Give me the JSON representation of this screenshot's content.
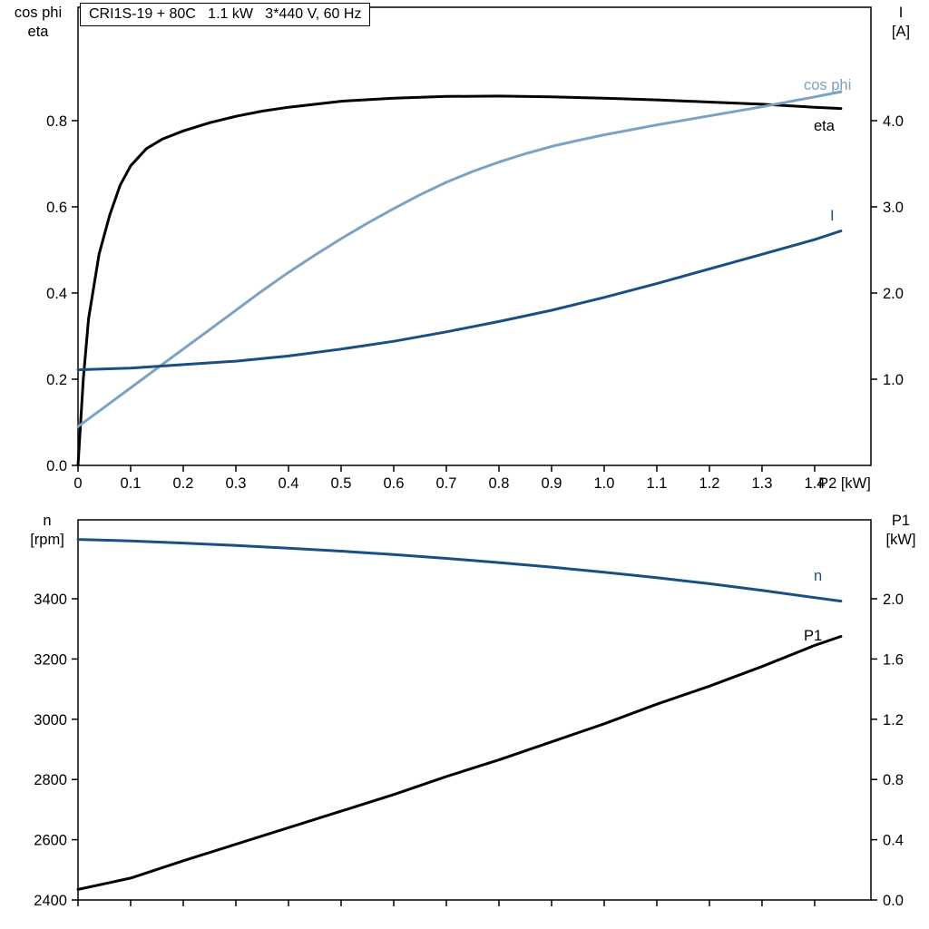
{
  "colors": {
    "black": "#000000",
    "dark_blue": "#1b4f82",
    "light_blue": "#7aa2c4"
  },
  "chart_data": [
    {
      "type": "line",
      "title": "CRI1S-19 + 80C   1.1 kW   3*440 V, 60 Hz",
      "grid": false,
      "legend": "inline-curve-labels",
      "x_axis": {
        "label": "P2 [kW]",
        "lim": [
          0,
          1.507
        ],
        "ticks": [
          0,
          0.1,
          0.2,
          0.3,
          0.4,
          0.5,
          0.6,
          0.7,
          0.8,
          0.9,
          1.0,
          1.1,
          1.2,
          1.3,
          1.4
        ],
        "tick_labels": [
          "0",
          "0.1",
          "0.2",
          "0.3",
          "0.4",
          "0.5",
          "0.6",
          "0.7",
          "0.8",
          "0.9",
          "1.0",
          "1.1",
          "1.2",
          "1.3",
          "1.4"
        ]
      },
      "y_left": {
        "corner_label_lines": [
          "cos phi",
          "eta"
        ],
        "lim": [
          0,
          1.063
        ],
        "ticks": [
          0,
          0.2,
          0.4,
          0.6,
          0.8
        ],
        "tick_labels": [
          "0.0",
          "0.2",
          "0.4",
          "0.6",
          "0.8"
        ]
      },
      "y_right": {
        "corner_label_lines": [
          "I",
          "[A]"
        ],
        "lim": [
          0,
          5.316
        ],
        "ticks": [
          1,
          2,
          3,
          4
        ],
        "tick_labels": [
          "1.0",
          "2.0",
          "3.0",
          "4.0"
        ]
      },
      "series": [
        {
          "name": "eta",
          "axis": "left",
          "color": "black",
          "x": [
            0,
            0.01,
            0.02,
            0.04,
            0.06,
            0.08,
            0.1,
            0.13,
            0.16,
            0.2,
            0.25,
            0.3,
            0.35,
            0.4,
            0.5,
            0.6,
            0.7,
            0.8,
            0.9,
            1.0,
            1.1,
            1.2,
            1.3,
            1.4,
            1.45
          ],
          "y": [
            0,
            0.2,
            0.34,
            0.49,
            0.58,
            0.65,
            0.695,
            0.735,
            0.757,
            0.776,
            0.795,
            0.81,
            0.822,
            0.831,
            0.845,
            0.852,
            0.856,
            0.857,
            0.855,
            0.852,
            0.848,
            0.843,
            0.838,
            0.831,
            0.828
          ]
        },
        {
          "name": "cos phi",
          "axis": "left",
          "color": "light_blue",
          "x": [
            0,
            0.05,
            0.1,
            0.15,
            0.2,
            0.25,
            0.3,
            0.35,
            0.4,
            0.45,
            0.5,
            0.55,
            0.6,
            0.65,
            0.7,
            0.75,
            0.8,
            0.85,
            0.9,
            0.95,
            1.0,
            1.1,
            1.2,
            1.3,
            1.4,
            1.45
          ],
          "y": [
            0.09,
            0.135,
            0.18,
            0.225,
            0.27,
            0.315,
            0.36,
            0.405,
            0.448,
            0.488,
            0.526,
            0.562,
            0.596,
            0.628,
            0.657,
            0.682,
            0.704,
            0.723,
            0.74,
            0.754,
            0.767,
            0.79,
            0.811,
            0.832,
            0.855,
            0.867
          ]
        },
        {
          "name": "I",
          "axis": "right",
          "color": "dark_blue",
          "x": [
            0,
            0.1,
            0.2,
            0.3,
            0.4,
            0.5,
            0.6,
            0.7,
            0.8,
            0.9,
            1.0,
            1.1,
            1.2,
            1.3,
            1.4,
            1.45
          ],
          "y": [
            1.11,
            1.13,
            1.17,
            1.21,
            1.27,
            1.35,
            1.44,
            1.55,
            1.67,
            1.8,
            1.95,
            2.11,
            2.28,
            2.45,
            2.62,
            2.72
          ]
        }
      ]
    },
    {
      "type": "line",
      "title": "",
      "grid": false,
      "legend": "inline-curve-labels",
      "x_axis": {
        "label": "",
        "lim": [
          0,
          1.507
        ],
        "ticks": [
          0,
          0.1,
          0.2,
          0.3,
          0.4,
          0.5,
          0.6,
          0.7,
          0.8,
          0.9,
          1.0,
          1.1,
          1.2,
          1.3,
          1.4
        ],
        "tick_labels": []
      },
      "y_left": {
        "corner_label_lines": [
          "n",
          "[rpm]"
        ],
        "lim": [
          2400,
          3662
        ],
        "ticks": [
          2400,
          2600,
          2800,
          3000,
          3200,
          3400
        ],
        "tick_labels": [
          "2400",
          "2600",
          "2800",
          "3000",
          "3200",
          "3400"
        ]
      },
      "y_right": {
        "corner_label_lines": [
          "P1",
          "[kW]"
        ],
        "lim": [
          0,
          2.524
        ],
        "ticks": [
          0,
          0.4,
          0.8,
          1.2,
          1.6,
          2.0
        ],
        "tick_labels": [
          "0.0",
          "0.4",
          "0.8",
          "1.2",
          "1.6",
          "2.0"
        ]
      },
      "series": [
        {
          "name": "n",
          "axis": "left",
          "color": "dark_blue",
          "x": [
            0,
            0.1,
            0.2,
            0.3,
            0.4,
            0.5,
            0.6,
            0.7,
            0.8,
            0.9,
            1.0,
            1.1,
            1.2,
            1.3,
            1.4,
            1.45
          ],
          "y": [
            3597,
            3592,
            3585,
            3577,
            3568,
            3558,
            3547,
            3534,
            3520,
            3505,
            3488,
            3470,
            3450,
            3428,
            3404,
            3392
          ]
        },
        {
          "name": "P1",
          "axis": "right",
          "color": "black",
          "x": [
            0,
            0.1,
            0.2,
            0.3,
            0.4,
            0.5,
            0.6,
            0.7,
            0.8,
            0.9,
            1.0,
            1.1,
            1.2,
            1.3,
            1.4,
            1.45
          ],
          "y": [
            0.07,
            0.145,
            0.26,
            0.37,
            0.48,
            0.59,
            0.7,
            0.82,
            0.93,
            1.05,
            1.17,
            1.3,
            1.42,
            1.55,
            1.69,
            1.75
          ]
        }
      ]
    }
  ]
}
